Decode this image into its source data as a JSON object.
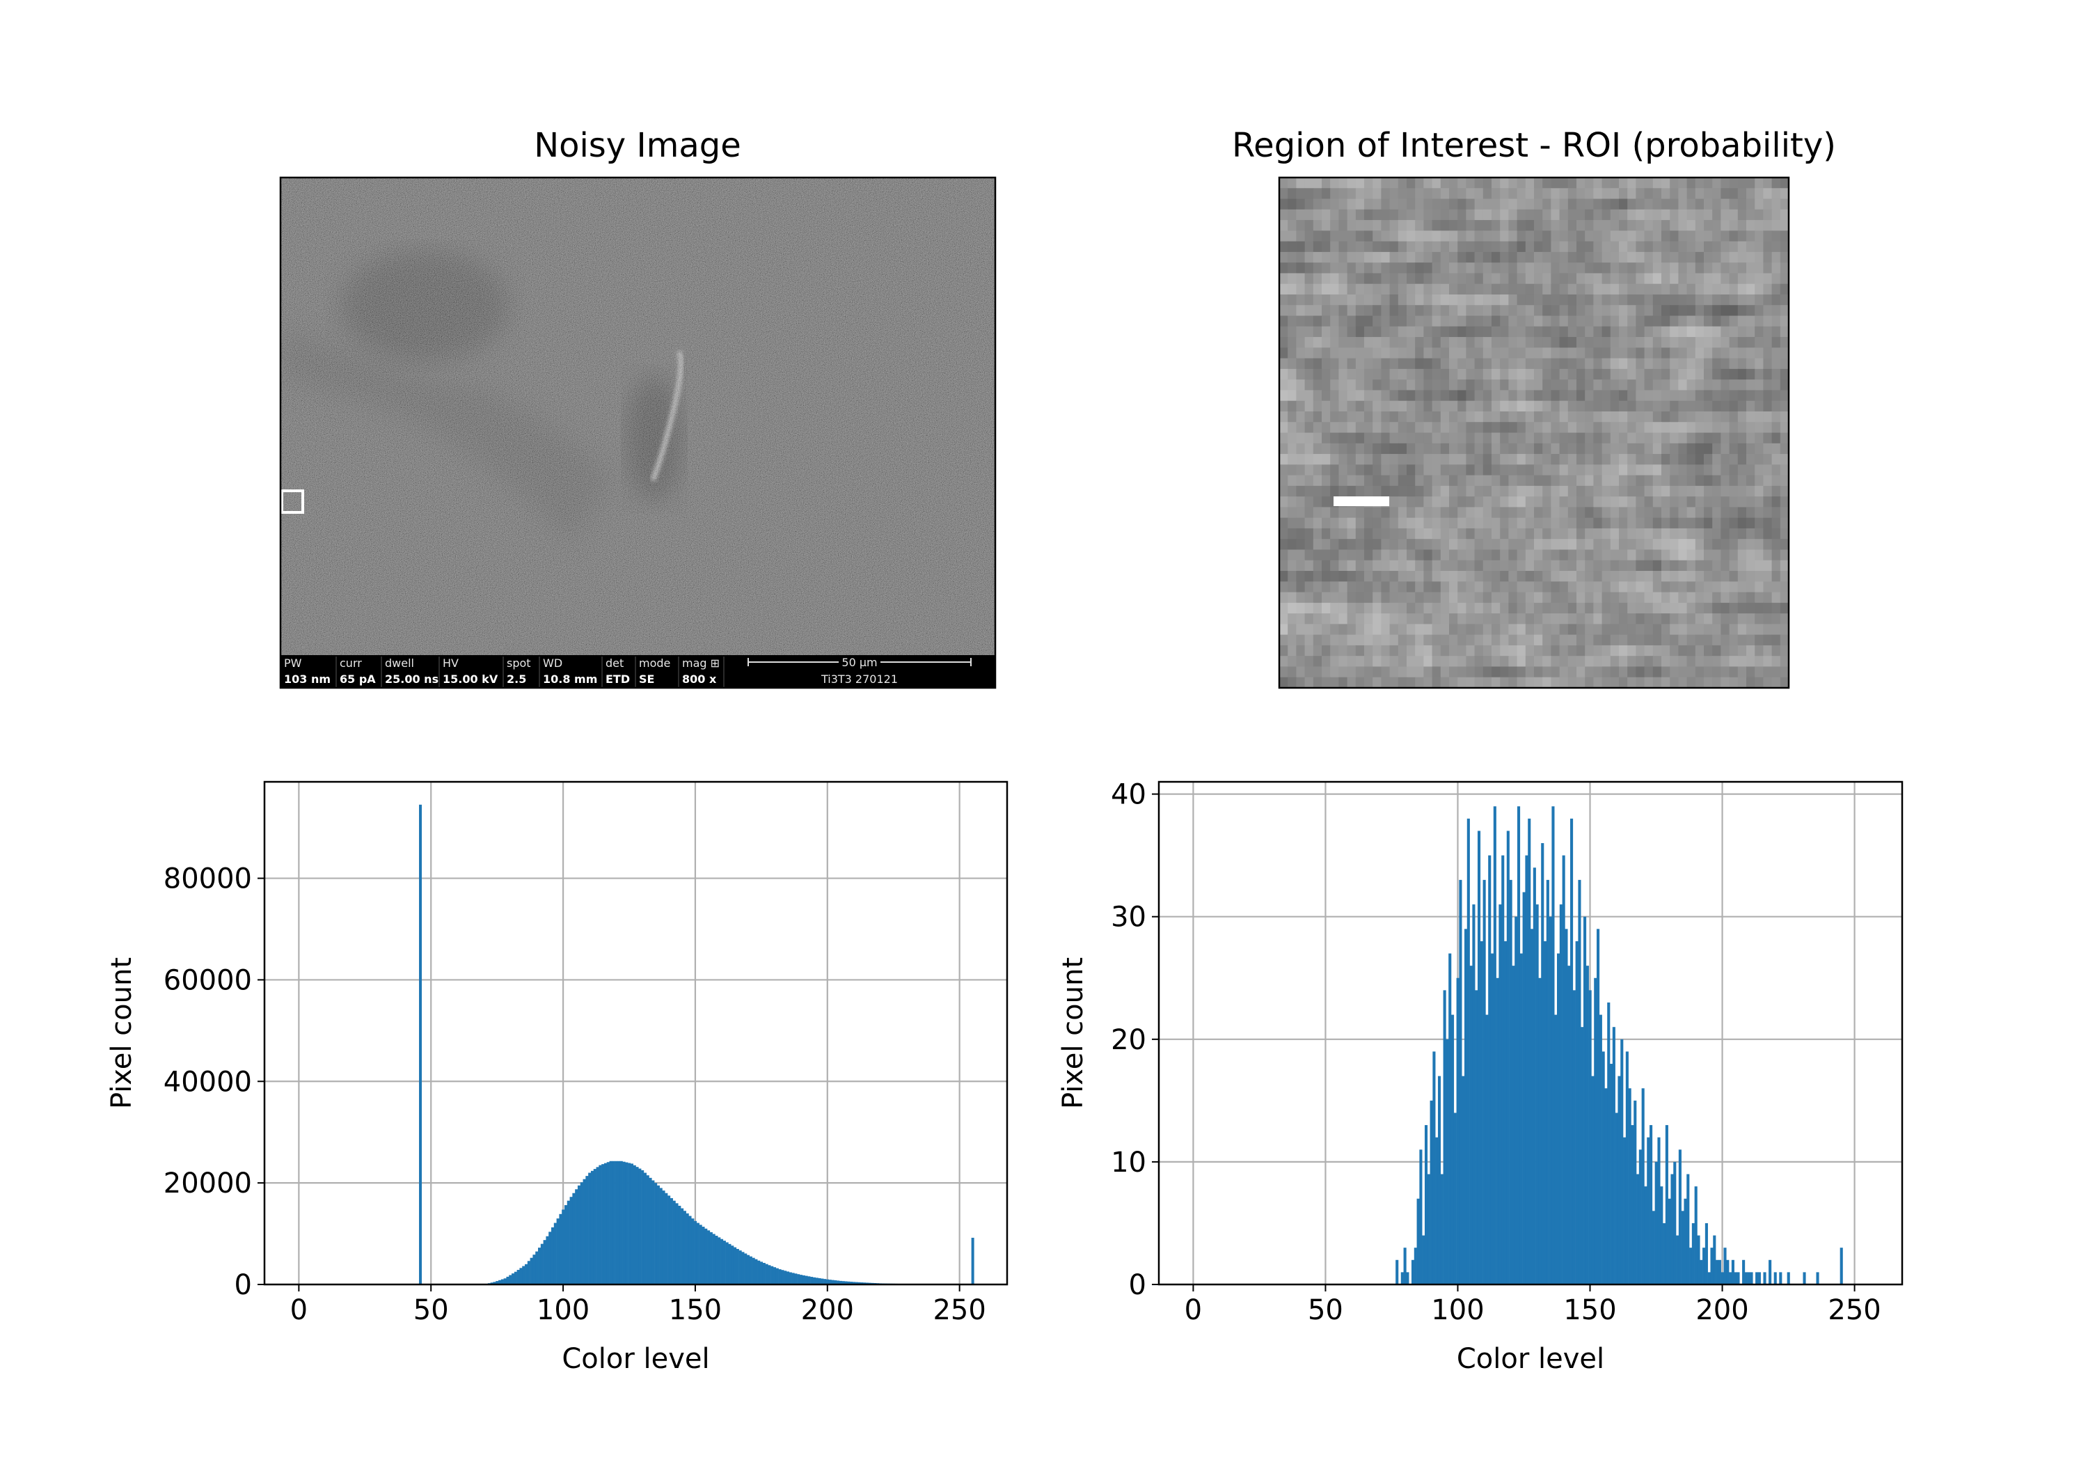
{
  "figure": {
    "noisy_image": {
      "title": "Noisy Image",
      "info_bar": {
        "labels": [
          "PW",
          "curr",
          "dwell",
          "HV",
          "spot",
          "WD",
          "det",
          "mode",
          "mag ⊞"
        ],
        "values": [
          "103 nm",
          "65 pA",
          "25.00 ns",
          "15.00 kV",
          "2.5",
          "10.8 mm",
          "ETD",
          "SE",
          "800 x"
        ],
        "scale_label": "50 µm",
        "sample_id": "Ti3T3 270121"
      }
    },
    "roi_image": {
      "title": "Region of Interest - ROI (probability)"
    }
  },
  "chart_data": [
    {
      "type": "bar",
      "title": "",
      "xlabel": "Color level",
      "ylabel": "Pixel count",
      "xlim": [
        -13,
        268
      ],
      "ylim": [
        0,
        99000
      ],
      "xticks": [
        0,
        50,
        100,
        150,
        200,
        250
      ],
      "yticks": [
        0,
        20000,
        40000,
        60000,
        80000
      ],
      "grid": true,
      "color": "#1f77b4",
      "bin_width": 1,
      "spikes": [
        {
          "x": 46,
          "y": 94500
        },
        {
          "x": 255,
          "y": 9200
        }
      ],
      "shape_points": [
        [
          70,
          0
        ],
        [
          74,
          500
        ],
        [
          78,
          1200
        ],
        [
          82,
          2500
        ],
        [
          86,
          4000
        ],
        [
          90,
          6500
        ],
        [
          94,
          9500
        ],
        [
          98,
          13000
        ],
        [
          102,
          16500
        ],
        [
          106,
          19500
        ],
        [
          110,
          22000
        ],
        [
          114,
          23500
        ],
        [
          118,
          24300
        ],
        [
          122,
          24300
        ],
        [
          126,
          23800
        ],
        [
          130,
          22500
        ],
        [
          134,
          20500
        ],
        [
          138,
          18500
        ],
        [
          142,
          16500
        ],
        [
          146,
          14500
        ],
        [
          150,
          12500
        ],
        [
          154,
          11000
        ],
        [
          158,
          9600
        ],
        [
          162,
          8300
        ],
        [
          166,
          7000
        ],
        [
          170,
          5800
        ],
        [
          174,
          4700
        ],
        [
          178,
          3800
        ],
        [
          182,
          3000
        ],
        [
          186,
          2400
        ],
        [
          190,
          1900
        ],
        [
          195,
          1400
        ],
        [
          200,
          1000
        ],
        [
          205,
          700
        ],
        [
          210,
          500
        ],
        [
          215,
          350
        ],
        [
          220,
          220
        ],
        [
          230,
          100
        ],
        [
          240,
          40
        ],
        [
          250,
          0
        ]
      ]
    },
    {
      "type": "bar",
      "title": "",
      "xlabel": "Color level",
      "ylabel": "Pixel count",
      "xlim": [
        -13,
        268
      ],
      "ylim": [
        0,
        41
      ],
      "xticks": [
        0,
        50,
        100,
        150,
        200,
        250
      ],
      "yticks": [
        0,
        10,
        20,
        30,
        40
      ],
      "grid": true,
      "color": "#1f77b4",
      "bin_width": 1,
      "x_start": 77,
      "values": [
        2,
        0,
        1,
        3,
        1,
        0,
        2,
        3,
        7,
        11,
        4,
        13,
        9,
        15,
        19,
        12,
        17,
        9,
        24,
        20,
        27,
        22,
        14,
        25,
        33,
        17,
        29,
        38,
        26,
        31,
        24,
        37,
        28,
        33,
        22,
        35,
        27,
        39,
        25,
        31,
        35,
        28,
        37,
        33,
        26,
        30,
        39,
        27,
        32,
        35,
        38,
        29,
        34,
        31,
        25,
        36,
        28,
        33,
        30,
        39,
        22,
        27,
        31,
        35,
        29,
        26,
        38,
        24,
        28,
        33,
        21,
        30,
        26,
        24,
        17,
        25,
        29,
        22,
        19,
        16,
        23,
        18,
        21,
        14,
        17,
        20,
        12,
        19,
        16,
        13,
        15,
        9,
        11,
        16,
        8,
        12,
        13,
        6,
        10,
        12,
        8,
        5,
        13,
        7,
        9,
        10,
        4,
        11,
        6,
        7,
        9,
        3,
        5,
        8,
        4,
        2,
        3,
        5,
        1,
        3,
        4,
        2,
        2,
        1,
        3,
        2,
        1,
        2,
        1,
        1,
        0,
        2,
        1,
        1,
        1,
        0,
        1,
        1,
        0,
        1,
        0,
        2,
        0,
        1,
        0,
        1,
        0,
        0,
        1,
        0,
        0,
        0,
        0,
        0,
        1,
        0,
        0,
        0,
        0,
        1,
        0,
        0,
        0,
        0,
        0,
        0,
        0,
        0,
        3
      ]
    }
  ]
}
